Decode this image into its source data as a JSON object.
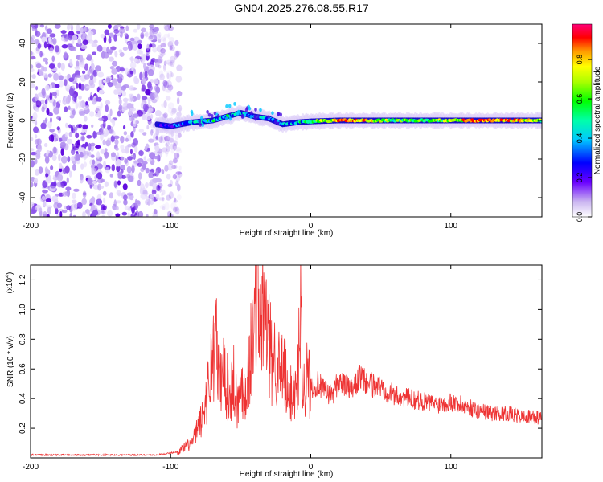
{
  "title": "GN04.2025.276.08.55.R17",
  "colorbar": {
    "label": "Normalized spectral amplitude",
    "ticks": [
      "0.0",
      "0.2",
      "0.4",
      "0.6",
      "0.8"
    ],
    "range": [
      0,
      0.98
    ]
  },
  "chart_data": [
    {
      "type": "heatmap",
      "xlabel": "Height of straight line (km)",
      "ylabel": "Frequency (Hz)",
      "xlim": [
        -200,
        165
      ],
      "ylim": [
        -50,
        50
      ],
      "xticks": [
        -200,
        -100,
        0,
        100
      ],
      "yticks": [
        -40,
        -20,
        0,
        20,
        40
      ],
      "noise_region_x": [
        -200,
        -93
      ],
      "track": [
        {
          "x": -110,
          "y": -2,
          "amp": 0.2
        },
        {
          "x": -100,
          "y": -3,
          "amp": 0.25
        },
        {
          "x": -85,
          "y": -1,
          "amp": 0.45
        },
        {
          "x": -70,
          "y": 0,
          "amp": 0.5
        },
        {
          "x": -60,
          "y": 2,
          "amp": 0.5
        },
        {
          "x": -50,
          "y": 4,
          "amp": 0.45
        },
        {
          "x": -40,
          "y": 2,
          "amp": 0.4
        },
        {
          "x": -30,
          "y": 1,
          "amp": 0.4
        },
        {
          "x": -20,
          "y": -2,
          "amp": 0.35
        },
        {
          "x": -10,
          "y": -1,
          "amp": 0.45
        },
        {
          "x": 0,
          "y": -0.5,
          "amp": 0.6
        },
        {
          "x": 20,
          "y": 0,
          "amp": 0.9
        },
        {
          "x": 40,
          "y": 0,
          "amp": 0.85
        },
        {
          "x": 60,
          "y": 0,
          "amp": 0.6
        },
        {
          "x": 80,
          "y": 0,
          "amp": 0.65
        },
        {
          "x": 100,
          "y": 0,
          "amp": 0.7
        },
        {
          "x": 120,
          "y": 0,
          "amp": 0.95
        },
        {
          "x": 140,
          "y": 0,
          "amp": 0.9
        },
        {
          "x": 165,
          "y": 0,
          "amp": 0.7
        }
      ]
    },
    {
      "type": "line",
      "xlabel": "Height of straight line (km)",
      "ylabel": "SNR (10 * v/v)",
      "yscale_label": "(x10",
      "yscale_exp": "4",
      "yscale_close": ")",
      "xlim": [
        -200,
        165
      ],
      "ylim": [
        0,
        1.3
      ],
      "xticks": [
        -200,
        -100,
        0,
        100
      ],
      "yticks": [
        0.2,
        0.4,
        0.6,
        0.8,
        1.0,
        1.2
      ],
      "series": [
        {
          "color": "#ee3333",
          "x": [
            -200,
            -150,
            -110,
            -95,
            -85,
            -78,
            -72,
            -68,
            -65,
            -62,
            -58,
            -55,
            -52,
            -49,
            -46,
            -43,
            -40,
            -38,
            -36,
            -34,
            -31,
            -28,
            -25,
            -22,
            -19,
            -16,
            -13,
            -10,
            -7,
            -5,
            -3,
            0,
            5,
            10,
            15,
            20,
            25,
            30,
            35,
            40,
            50,
            60,
            70,
            80,
            90,
            100,
            110,
            120,
            130,
            140,
            150,
            165
          ],
          "y": [
            0.02,
            0.02,
            0.02,
            0.04,
            0.1,
            0.25,
            0.55,
            0.82,
            0.5,
            0.6,
            0.4,
            0.55,
            0.35,
            0.5,
            0.45,
            0.7,
            0.9,
            1.28,
            0.8,
            1.0,
            0.85,
            0.65,
            0.7,
            0.55,
            0.6,
            0.35,
            0.5,
            0.4,
            1.02,
            0.45,
            0.55,
            0.48,
            0.5,
            0.45,
            0.42,
            0.52,
            0.48,
            0.45,
            0.55,
            0.5,
            0.48,
            0.42,
            0.4,
            0.38,
            0.36,
            0.38,
            0.35,
            0.32,
            0.3,
            0.3,
            0.28,
            0.27
          ]
        }
      ]
    }
  ]
}
